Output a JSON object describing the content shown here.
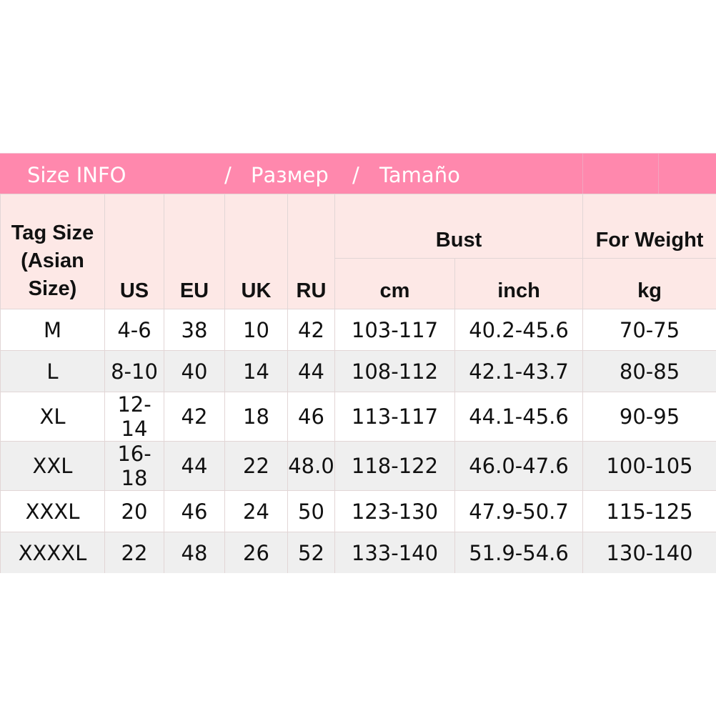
{
  "title": {
    "part1": "Size INFO",
    "sep1": "/",
    "part2": "Размер",
    "sep2": "/",
    "part3": "Tamaño"
  },
  "colors": {
    "band": "#ff88ad",
    "header": "#fde8e6",
    "alt_row": "#efefef"
  },
  "headers": {
    "tag_size": "Tag Size (Asian Size)",
    "us": "US",
    "eu": "EU",
    "uk": "UK",
    "ru": "RU",
    "bust": "Bust",
    "cm": "cm",
    "inch": "inch",
    "weight": "For Weight",
    "kg": "kg"
  },
  "rows": [
    [
      "M",
      "4-6",
      "38",
      "10",
      "42",
      "103-117",
      "40.2-45.6",
      "70-75"
    ],
    [
      "L",
      "8-10",
      "40",
      "14",
      "44",
      "108-112",
      "42.1-43.7",
      "80-85"
    ],
    [
      "XL",
      "12-14",
      "42",
      "18",
      "46",
      "113-117",
      "44.1-45.6",
      "90-95"
    ],
    [
      "XXL",
      "16-18",
      "44",
      "22",
      "48.0",
      "118-122",
      "46.0-47.6",
      "100-105"
    ],
    [
      "XXXL",
      "20",
      "46",
      "24",
      "50",
      "123-130",
      "47.9-50.7",
      "115-125"
    ],
    [
      "XXXXL",
      "22",
      "48",
      "26",
      "52",
      "133-140",
      "51.9-54.6",
      "130-140"
    ]
  ]
}
